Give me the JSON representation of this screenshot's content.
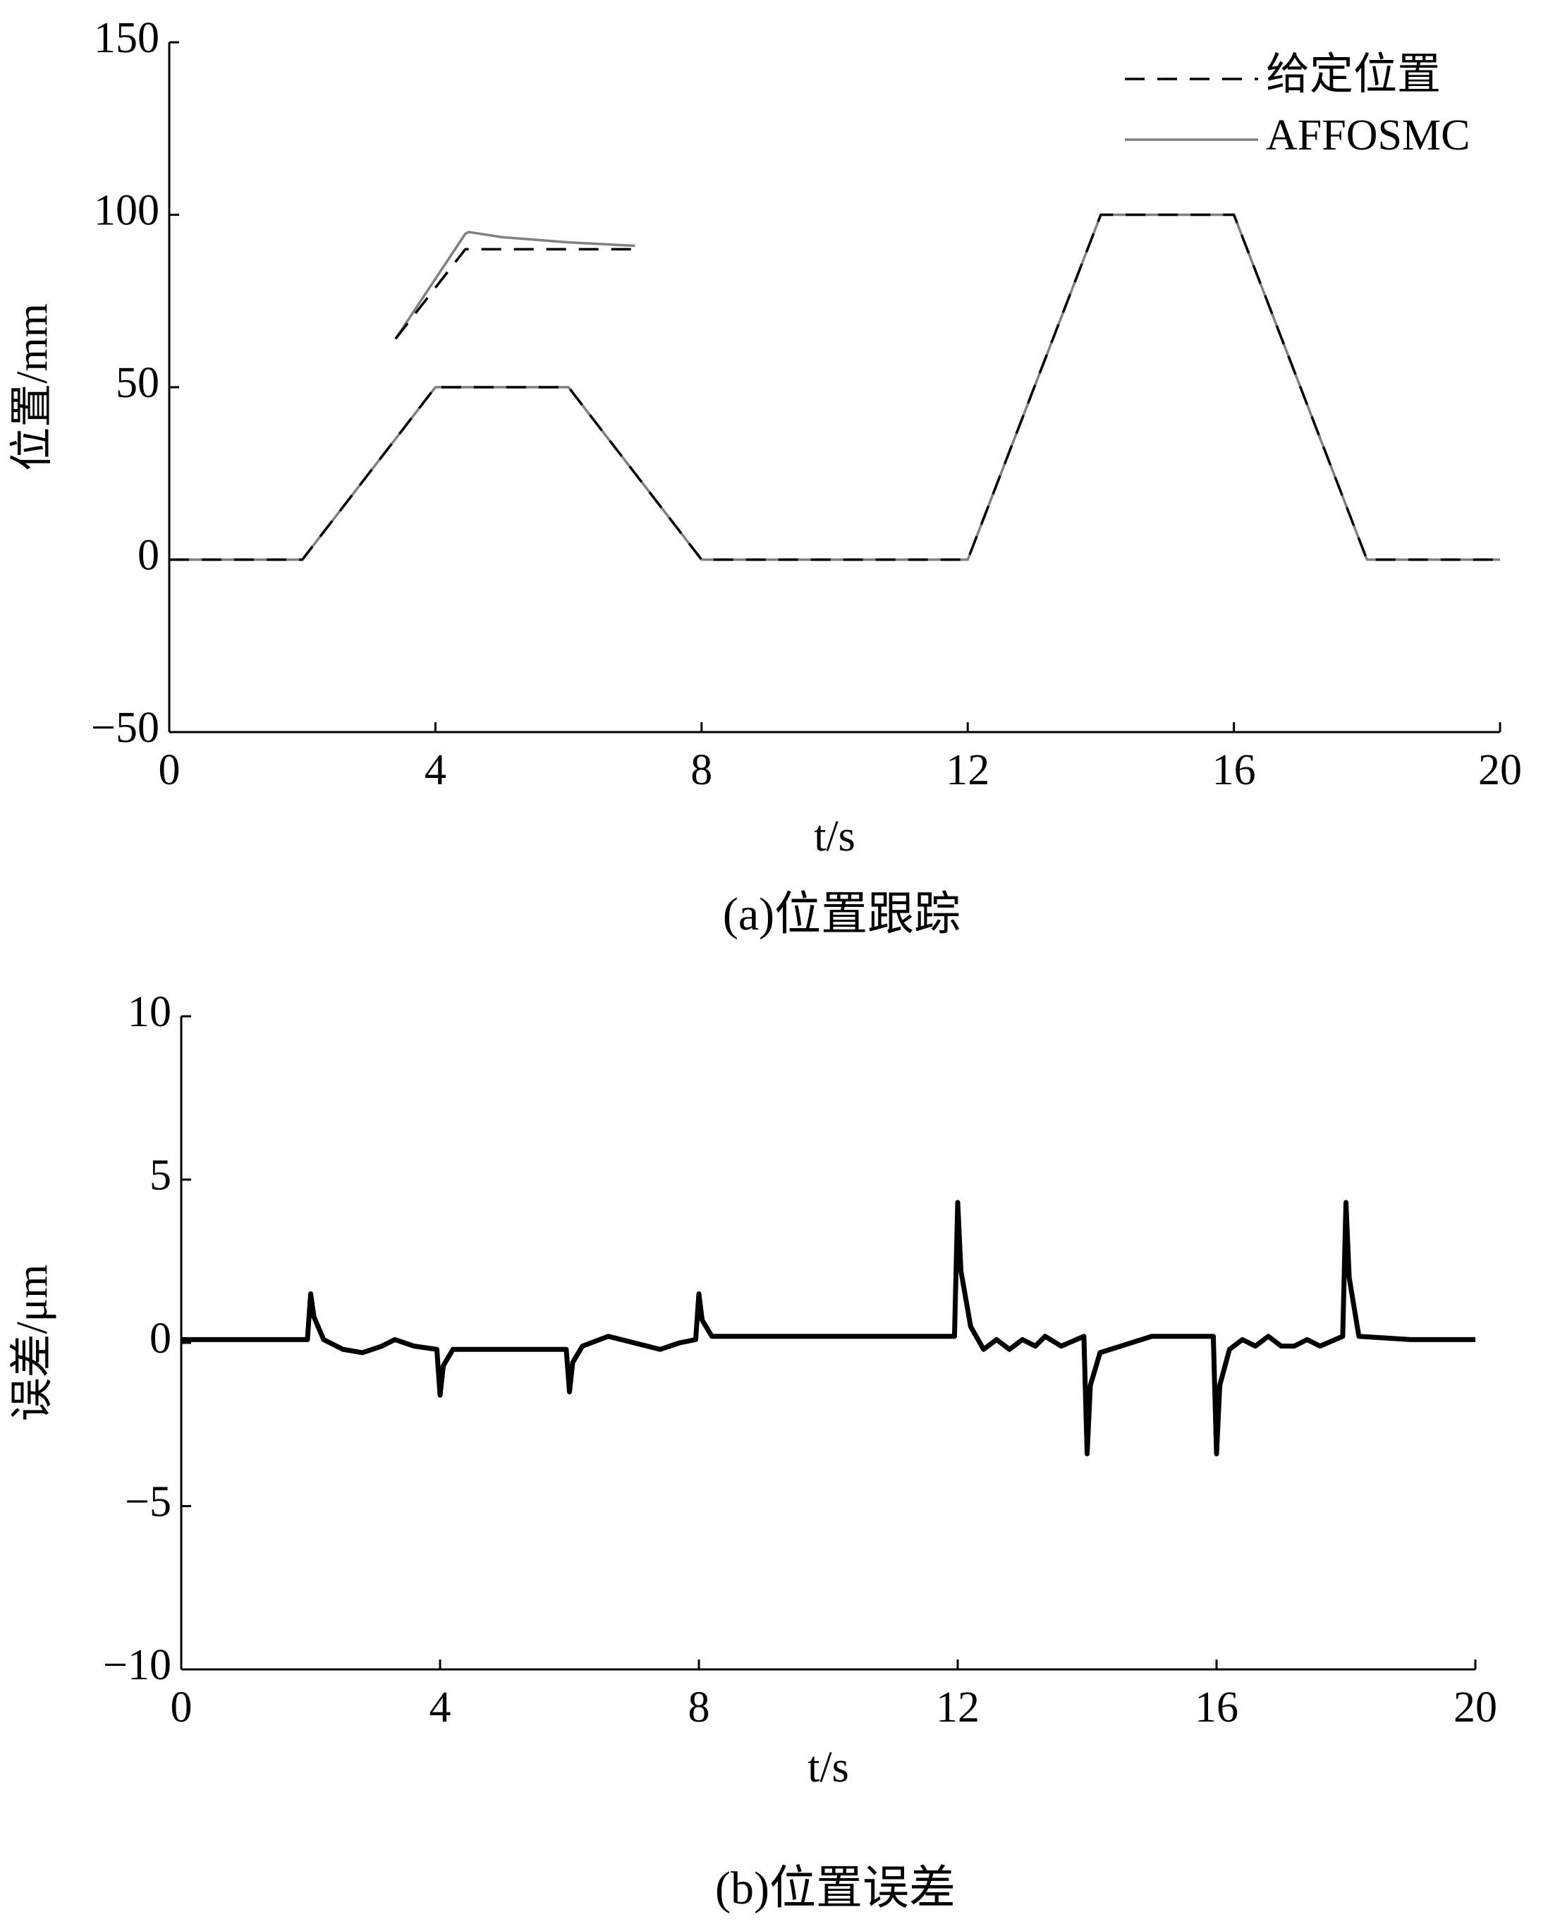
{
  "chart_data": [
    {
      "type": "line",
      "caption": "(a)位置跟踪",
      "xlabel": "t/s",
      "ylabel": "位置/mm",
      "xlim": [
        0,
        20
      ],
      "xticks": [
        0,
        4,
        8,
        12,
        16,
        20
      ],
      "ylim": [
        -50,
        150
      ],
      "yticks": [
        {
          "value": -50,
          "label": "−50"
        },
        0,
        50,
        100,
        150
      ],
      "x": [
        0,
        2,
        4,
        6,
        8,
        12,
        14,
        16,
        18,
        20
      ],
      "series": [
        {
          "name": "给定位置",
          "color": "#000000",
          "dash": true,
          "values": [
            0,
            0,
            50,
            50,
            0,
            0,
            100,
            100,
            0,
            0
          ]
        },
        {
          "name": "AFFOSMC",
          "color": "#808080",
          "dash": false,
          "values": [
            0,
            0,
            50,
            50,
            0,
            0,
            100,
            100,
            0,
            0
          ]
        }
      ],
      "inset": {
        "x": [
          3.4,
          4.45,
          4.5,
          5,
          6,
          7
        ],
        "series": [
          {
            "values": [
              64,
              90,
              90,
              90,
              90,
              90
            ]
          },
          {
            "values": [
              64,
              94.5,
              95,
              93.5,
              92,
              91
            ]
          }
        ]
      },
      "legend": "upper right"
    },
    {
      "type": "line",
      "caption": "(b)位置误差",
      "xlabel": "t/s",
      "ylabel": "误差/μm",
      "xlim": [
        0,
        20
      ],
      "xticks": [
        0,
        4,
        8,
        12,
        16,
        20
      ],
      "ylim": [
        -10,
        10
      ],
      "yticks": [
        {
          "value": -10,
          "label": "−10"
        },
        {
          "value": -5,
          "label": "−5"
        },
        0,
        5,
        10
      ],
      "x": [
        0,
        1.95,
        2.0,
        2.05,
        2.2,
        2.5,
        2.8,
        3.1,
        3.3,
        3.6,
        3.95,
        4.0,
        4.05,
        4.2,
        5.0,
        5.95,
        6.0,
        6.05,
        6.2,
        6.6,
        7.0,
        7.4,
        7.7,
        7.95,
        8.0,
        8.05,
        8.2,
        10,
        11.95,
        12.0,
        12.05,
        12.2,
        12.4,
        12.6,
        12.8,
        13.0,
        13.2,
        13.35,
        13.6,
        13.95,
        14.0,
        14.05,
        14.2,
        15,
        15.95,
        16.0,
        16.05,
        16.2,
        16.4,
        16.6,
        16.8,
        17.0,
        17.2,
        17.4,
        17.6,
        17.95,
        18.0,
        18.05,
        18.2,
        19,
        20
      ],
      "series": [
        {
          "color": "#000000",
          "dash": false,
          "values": [
            0.1,
            0.1,
            1.5,
            0.8,
            0.1,
            -0.2,
            -0.3,
            -0.1,
            0.1,
            -0.1,
            -0.2,
            -1.6,
            -0.7,
            -0.2,
            -0.2,
            -0.2,
            -1.5,
            -0.6,
            -0.1,
            0.2,
            0.0,
            -0.2,
            0.0,
            0.1,
            1.5,
            0.7,
            0.2,
            0.2,
            0.2,
            4.3,
            2.2,
            0.5,
            -0.2,
            0.1,
            -0.2,
            0.1,
            -0.1,
            0.2,
            -0.1,
            0.2,
            -3.4,
            -1.3,
            -0.3,
            0.2,
            0.2,
            -3.4,
            -1.3,
            -0.2,
            0.1,
            -0.1,
            0.2,
            -0.1,
            -0.1,
            0.1,
            -0.1,
            0.2,
            4.3,
            2.0,
            0.2,
            0.1,
            0.1
          ]
        }
      ]
    }
  ]
}
